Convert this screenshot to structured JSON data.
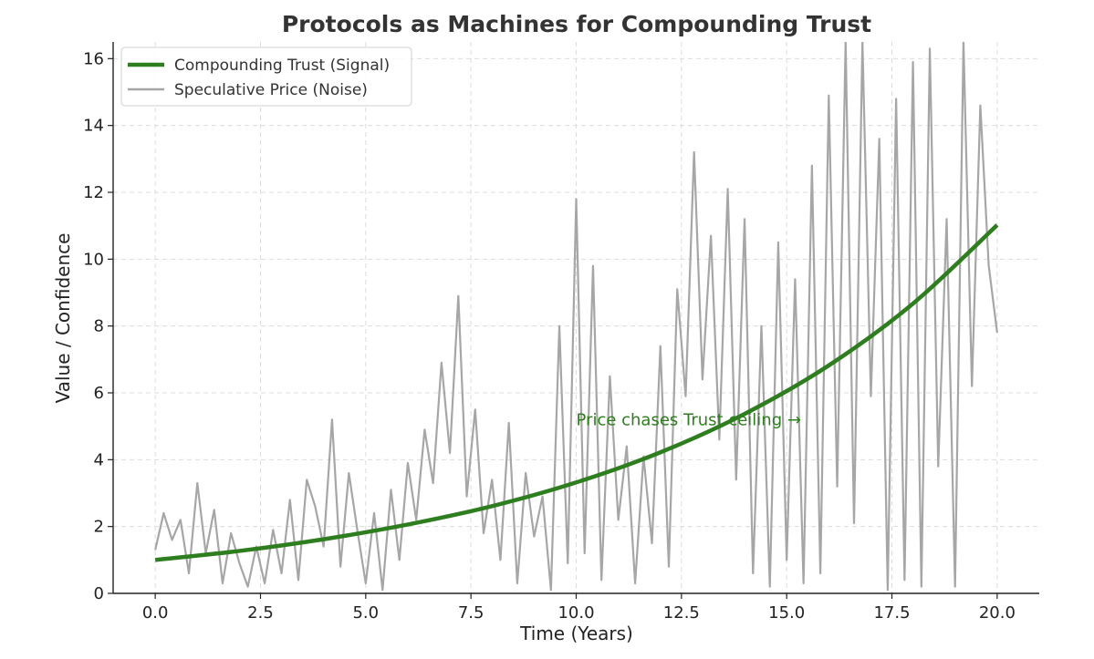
{
  "chart_data": {
    "type": "line",
    "title": "Protocols as Machines for Compounding Trust",
    "xlabel": "Time (Years)",
    "ylabel": "Value / Confidence",
    "xlim": [
      -1,
      21
    ],
    "ylim": [
      0,
      16.5
    ],
    "xticks": [
      0,
      2.5,
      5,
      7.5,
      10,
      12.5,
      15,
      17.5,
      20
    ],
    "xtick_labels": [
      "0.0",
      "2.5",
      "5.0",
      "7.5",
      "10.0",
      "12.5",
      "15.0",
      "17.5",
      "20.0"
    ],
    "yticks": [
      0,
      2,
      4,
      6,
      8,
      10,
      12,
      14,
      16
    ],
    "ytick_labels": [
      "0",
      "2",
      "4",
      "6",
      "8",
      "10",
      "12",
      "14",
      "16"
    ],
    "grid": true,
    "legend_position": "top-left",
    "series": [
      {
        "name": "Compounding Trust (Signal)",
        "color": "#2e7d1f",
        "style": "thick",
        "x": [
          0,
          2,
          4,
          6,
          8,
          10,
          12,
          14,
          16,
          18,
          20
        ],
        "y": [
          1.0,
          1.27,
          1.62,
          2.06,
          2.61,
          3.32,
          4.22,
          5.37,
          6.82,
          8.67,
          11.02
        ]
      },
      {
        "name": "Speculative Price (Noise)",
        "color": "#a6a6a6",
        "style": "thin",
        "x": [
          0,
          0.2,
          0.4,
          0.6,
          0.8,
          1.0,
          1.2,
          1.4,
          1.6,
          1.8,
          2.0,
          2.2,
          2.4,
          2.6,
          2.8,
          3.0,
          3.2,
          3.4,
          3.6,
          3.8,
          4.0,
          4.2,
          4.4,
          4.6,
          4.8,
          5.0,
          5.2,
          5.4,
          5.6,
          5.8,
          6.0,
          6.2,
          6.4,
          6.6,
          6.8,
          7.0,
          7.2,
          7.4,
          7.6,
          7.8,
          8.0,
          8.2,
          8.4,
          8.6,
          8.8,
          9.0,
          9.2,
          9.4,
          9.6,
          9.8,
          10.0,
          10.2,
          10.4,
          10.6,
          10.8,
          11.0,
          11.2,
          11.4,
          11.6,
          11.8,
          12.0,
          12.2,
          12.4,
          12.6,
          12.8,
          13.0,
          13.2,
          13.4,
          13.6,
          13.8,
          14.0,
          14.2,
          14.4,
          14.6,
          14.8,
          15.0,
          15.2,
          15.4,
          15.6,
          15.8,
          16.0,
          16.2,
          16.4,
          16.6,
          16.8,
          17.0,
          17.2,
          17.4,
          17.6,
          17.8,
          18.0,
          18.2,
          18.4,
          18.6,
          18.8,
          19.0,
          19.2,
          19.4,
          19.6,
          19.8,
          20.0
        ],
        "y": [
          1.3,
          2.4,
          1.6,
          2.2,
          0.6,
          3.3,
          1.2,
          2.5,
          0.3,
          1.8,
          0.9,
          0.2,
          1.4,
          0.3,
          1.9,
          0.6,
          2.8,
          0.4,
          3.4,
          2.6,
          1.4,
          5.2,
          0.8,
          3.6,
          1.9,
          0.3,
          2.4,
          0.1,
          3.1,
          1.0,
          3.9,
          2.2,
          4.9,
          3.3,
          6.9,
          4.2,
          8.9,
          2.9,
          5.5,
          1.8,
          3.4,
          1.0,
          5.1,
          0.3,
          3.6,
          1.7,
          2.9,
          0.1,
          8.0,
          0.9,
          11.8,
          1.2,
          9.8,
          0.4,
          6.5,
          2.2,
          4.4,
          0.3,
          4.1,
          1.5,
          7.4,
          0.8,
          9.1,
          5.9,
          13.2,
          6.4,
          10.7,
          4.6,
          12.1,
          3.4,
          11.2,
          0.6,
          8.0,
          0.2,
          10.5,
          1.0,
          9.4,
          0.3,
          12.8,
          0.6,
          14.9,
          3.2,
          16.5,
          2.1,
          16.5,
          5.9,
          13.6,
          0.1,
          14.8,
          0.4,
          15.9,
          0.2,
          16.3,
          3.8,
          11.2,
          0.2,
          16.5,
          6.2,
          14.6,
          9.8,
          7.8
        ]
      }
    ],
    "annotations": [
      {
        "text": "Price chases Trust ceiling →",
        "x": 10,
        "y": 5.2,
        "color": "#2e7d1f"
      }
    ]
  }
}
